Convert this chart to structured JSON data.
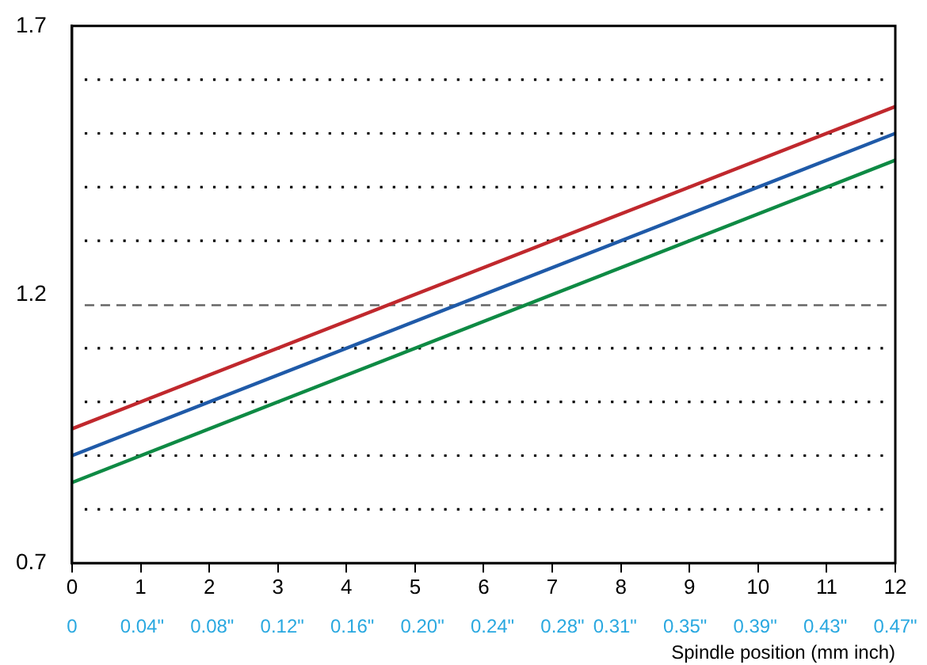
{
  "chart_data": {
    "type": "line",
    "xlabel": "Spindle position (mm inch)",
    "x": [
      0,
      12
    ],
    "series": [
      {
        "color": "#c0282d",
        "values": [
          0.95,
          1.55
        ]
      },
      {
        "color": "#1f5aa8",
        "values": [
          0.9,
          1.5
        ]
      },
      {
        "color": "#0e8a44",
        "values": [
          0.85,
          1.45
        ]
      }
    ],
    "xlim": [
      0,
      12
    ],
    "xticks": [
      0,
      1,
      2,
      3,
      4,
      5,
      6,
      7,
      8,
      9,
      10,
      11,
      12
    ],
    "x2lim": [
      0,
      0.47
    ],
    "x2ticks": [
      0,
      {
        "value": 0.04,
        "label": "0.04\""
      },
      {
        "value": 0.08,
        "label": "0.08\""
      },
      {
        "value": 0.12,
        "label": "0.12\""
      },
      {
        "value": 0.16,
        "label": "0.16\""
      },
      {
        "value": 0.2,
        "label": "0.20\""
      },
      {
        "value": 0.24,
        "label": "0.24\""
      },
      {
        "value": 0.28,
        "label": "0.28\""
      },
      {
        "value": 0.31,
        "label": "0.31\""
      },
      {
        "value": 0.35,
        "label": "0.35\""
      },
      {
        "value": 0.39,
        "label": "0.39\""
      },
      {
        "value": 0.43,
        "label": "0.43\""
      },
      {
        "value": 0.47,
        "label": "0.47\""
      }
    ],
    "ylim": [
      0.7,
      1.7
    ],
    "yticks": [
      0.7,
      {
        "value": 0.8,
        "label": null
      },
      {
        "value": 0.9,
        "label": null
      },
      {
        "value": 1.0,
        "label": null
      },
      {
        "value": 1.1,
        "label": null
      },
      1.2,
      {
        "value": 1.3,
        "label": null
      },
      {
        "value": 1.4,
        "label": null
      },
      {
        "value": 1.5,
        "label": null
      },
      {
        "value": 1.6,
        "label": null
      },
      1.7
    ],
    "ref_lines": [
      {
        "axis": "y",
        "value": 1.18,
        "color": "#666666",
        "line_style": "dashed"
      }
    ],
    "grid": "y",
    "marker": "none",
    "line_style": "solid",
    "legend": false
  }
}
